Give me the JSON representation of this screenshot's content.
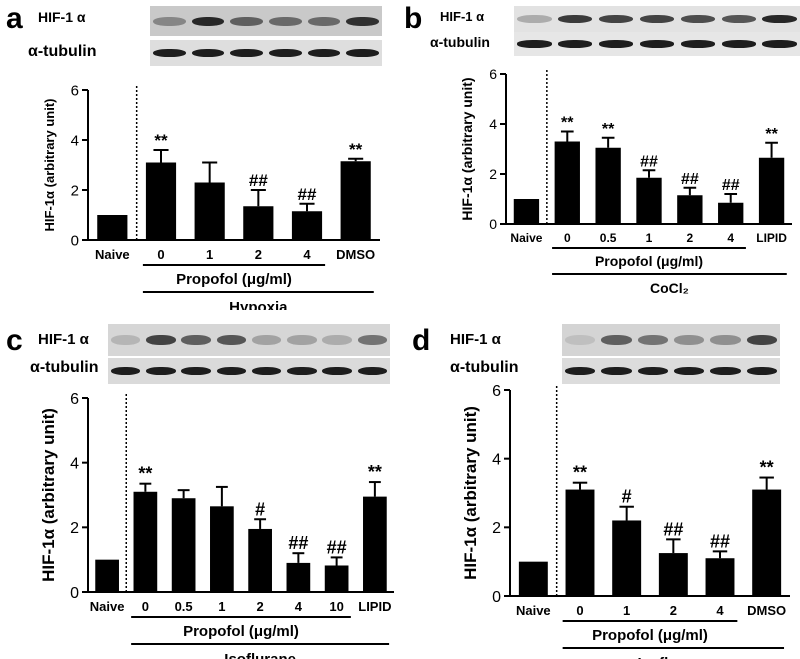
{
  "panels": [
    {
      "label": "a",
      "blot_labels": {
        "hif": "HIF-1 α",
        "tubulin": "α-tubulin"
      },
      "chart_data": {
        "type": "bar",
        "ylabel": "HIF-1α (arbitrary unit)",
        "ylim": [
          0,
          6
        ],
        "yticks": [
          "0",
          "2",
          "4",
          "6"
        ],
        "categories": [
          "Naive",
          "0",
          "1",
          "2",
          "4",
          "DMSO"
        ],
        "values": [
          1.0,
          3.1,
          2.3,
          1.35,
          1.15,
          3.15
        ],
        "errors": [
          0,
          0.5,
          0.8,
          0.65,
          0.3,
          0.1
        ],
        "annotations": [
          "",
          "**",
          "",
          "##",
          "##",
          "**"
        ],
        "group_label": "Propofol (μg/ml)",
        "treatment": "Hypoxia"
      }
    },
    {
      "label": "b",
      "blot_labels": {
        "hif": "HIF-1 α",
        "tubulin": "α-tubulin"
      },
      "chart_data": {
        "type": "bar",
        "ylabel": "HIF-1α (arbitrary unit)",
        "ylim": [
          0,
          6
        ],
        "yticks": [
          "0",
          "2",
          "4",
          "6"
        ],
        "categories": [
          "Naive",
          "0",
          "0.5",
          "1",
          "2",
          "4",
          "LIPID"
        ],
        "values": [
          1.0,
          3.3,
          3.05,
          1.85,
          1.15,
          0.85,
          2.65
        ],
        "errors": [
          0,
          0.4,
          0.4,
          0.3,
          0.3,
          0.35,
          0.6
        ],
        "annotations": [
          "",
          "**",
          "**",
          "##",
          "##",
          "##",
          "**"
        ],
        "group_label": "Propofol (μg/ml)",
        "treatment": "CoCl₂"
      }
    },
    {
      "label": "c",
      "blot_labels": {
        "hif": "HIF-1 α",
        "tubulin": "α-tubulin"
      },
      "chart_data": {
        "type": "bar",
        "ylabel": "HIF-1α (arbitrary unit)",
        "ylim": [
          0,
          6
        ],
        "yticks": [
          "0",
          "2",
          "4",
          "6"
        ],
        "categories": [
          "Naive",
          "0",
          "0.5",
          "1",
          "2",
          "4",
          "10",
          "LIPID"
        ],
        "values": [
          1.0,
          3.1,
          2.9,
          2.65,
          1.95,
          0.9,
          0.82,
          2.95
        ],
        "errors": [
          0,
          0.25,
          0.25,
          0.6,
          0.3,
          0.3,
          0.25,
          0.45
        ],
        "annotations": [
          "",
          "**",
          "",
          "",
          "#",
          "##",
          "##",
          "**"
        ],
        "group_label": "Propofol (μg/ml)",
        "treatment": "Isoflurane"
      }
    },
    {
      "label": "d",
      "blot_labels": {
        "hif": "HIF-1 α",
        "tubulin": "α-tubulin"
      },
      "chart_data": {
        "type": "bar",
        "ylabel": "HIF-1α (arbitrary unit)",
        "ylim": [
          0,
          6
        ],
        "yticks": [
          "0",
          "2",
          "4",
          "6"
        ],
        "categories": [
          "Naive",
          "0",
          "1",
          "2",
          "4",
          "DMSO"
        ],
        "values": [
          1.0,
          3.1,
          2.2,
          1.25,
          1.1,
          3.1
        ],
        "errors": [
          0,
          0.2,
          0.4,
          0.4,
          0.2,
          0.35
        ],
        "annotations": [
          "",
          "**",
          "#",
          "##",
          "##",
          "**"
        ],
        "group_label": "Propofol (μg/ml)",
        "treatment": "Isoflurane"
      }
    }
  ]
}
